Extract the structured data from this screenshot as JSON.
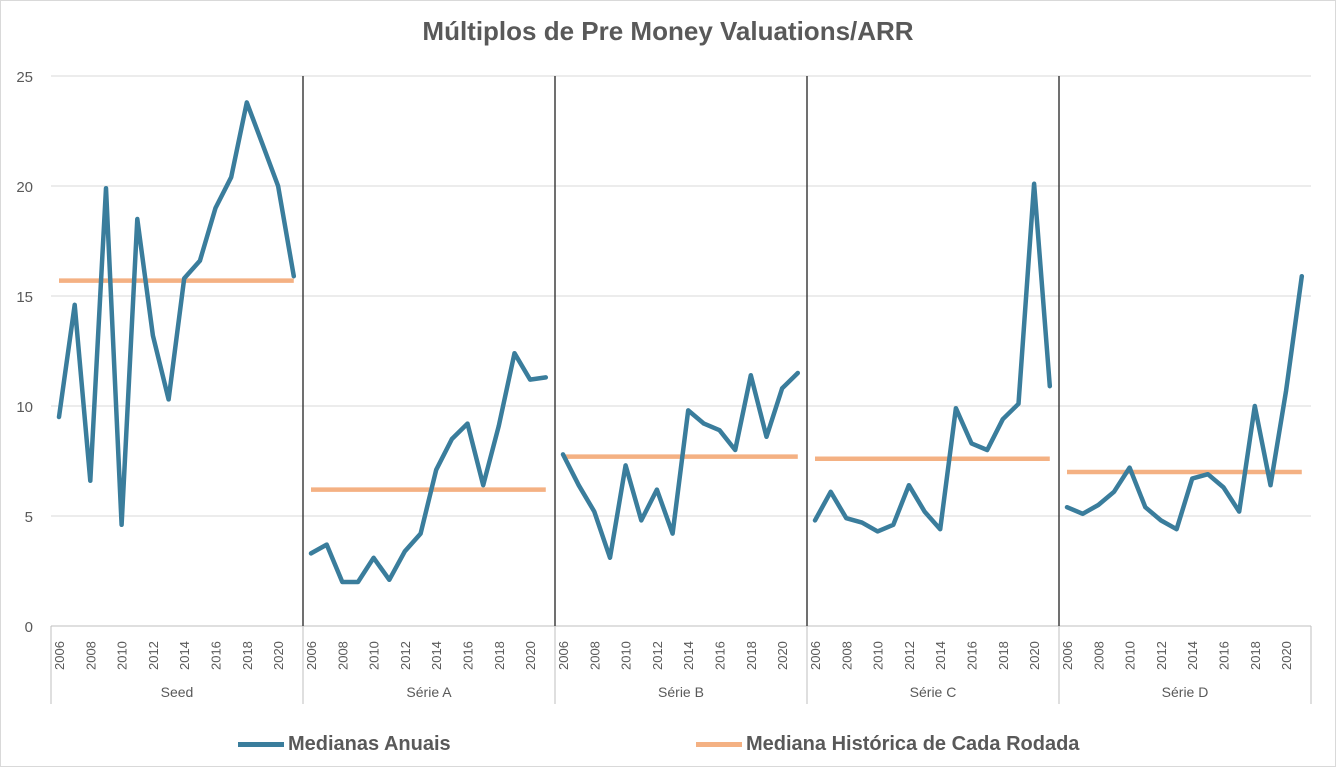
{
  "chart_data": {
    "type": "line",
    "title": "Múltiplos de Pre Money Valuations/ARR",
    "xlabel": "",
    "ylabel": "",
    "ylim": [
      0,
      25
    ],
    "yticks": [
      "0",
      "5",
      "10",
      "15",
      "20",
      "25"
    ],
    "grid": true,
    "legend_position": "bottom",
    "x": [
      2006,
      2007,
      2008,
      2009,
      2010,
      2011,
      2012,
      2013,
      2014,
      2015,
      2016,
      2017,
      2018,
      2019,
      2020,
      2021
    ],
    "x_tick_labels": [
      "2006",
      "2008",
      "2010",
      "2012",
      "2014",
      "2016",
      "2018",
      "2020"
    ],
    "groups": [
      "Seed",
      "Série A",
      "Série B",
      "Série C",
      "Série D"
    ],
    "series": [
      {
        "name": "Medianas Anuais",
        "color": "#3a7d9c",
        "values": {
          "Seed": [
            9.5,
            14.6,
            6.6,
            19.9,
            4.6,
            18.5,
            13.2,
            10.3,
            15.8,
            16.6,
            19.0,
            20.4,
            23.8,
            21.9,
            20.0,
            15.9
          ],
          "Série A": [
            3.3,
            3.7,
            2.0,
            2.0,
            3.1,
            2.1,
            3.4,
            4.2,
            7.1,
            8.5,
            9.2,
            6.4,
            9.1,
            12.4,
            11.2,
            11.3
          ],
          "Série B": [
            7.8,
            6.4,
            5.2,
            3.1,
            7.3,
            4.8,
            6.2,
            4.2,
            9.8,
            9.2,
            8.9,
            8.0,
            11.4,
            8.6,
            10.8,
            11.5
          ],
          "Série C": [
            4.8,
            6.1,
            4.9,
            4.7,
            4.3,
            4.6,
            6.4,
            5.2,
            4.4,
            9.9,
            8.3,
            8.0,
            9.4,
            10.1,
            20.1,
            10.9
          ],
          "Série D": [
            5.4,
            5.1,
            5.5,
            6.1,
            7.2,
            5.4,
            4.8,
            4.4,
            6.7,
            6.9,
            6.3,
            5.2,
            10.0,
            6.4,
            10.7,
            15.9
          ]
        }
      },
      {
        "name": "Mediana Histórica de Cada Rodada",
        "color": "#f4b183",
        "values": {
          "Seed": 15.7,
          "Série A": 6.2,
          "Série B": 7.7,
          "Série C": 7.6,
          "Série D": 7.0
        }
      }
    ]
  }
}
